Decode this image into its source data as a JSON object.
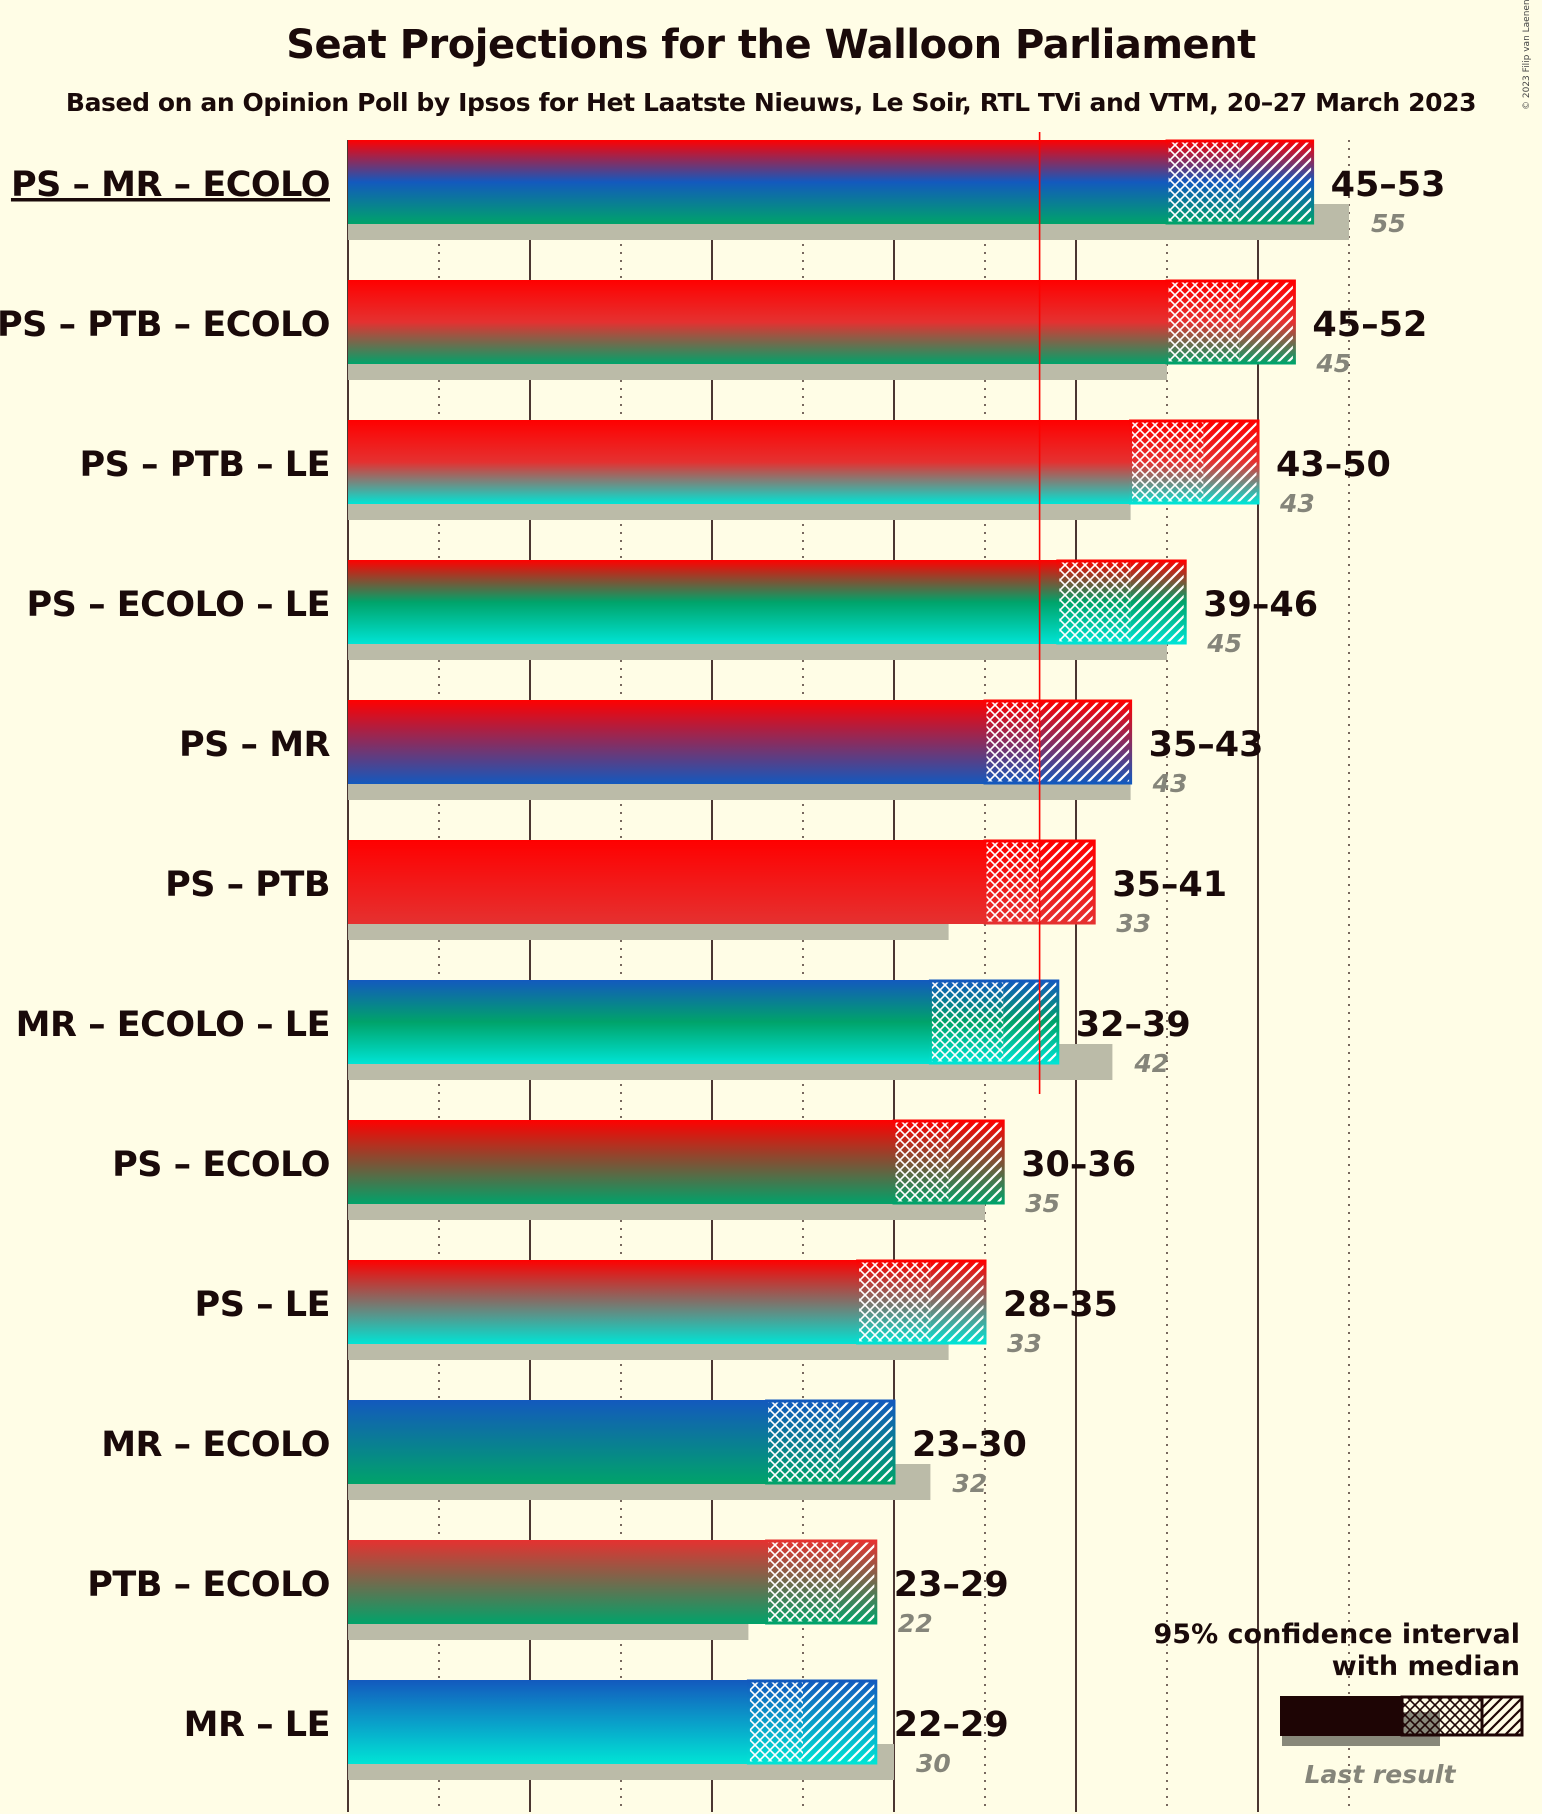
{
  "title": "Seat Projections for the Walloon Parliament",
  "subtitle": "Based on an Opinion Poll by Ipsos for Het Laatste Nieuws, Le Soir, RTL TVi and VTM, 20–27 March 2023",
  "copyright": "© 2023 Filip van Laenen",
  "colors": {
    "PS": "#FF0000",
    "PTB": "#E53130",
    "MR": "#1359BE",
    "ECOLO": "#00A36A",
    "LE": "#00E4D5",
    "last_result": "#BBBBA8",
    "majority_line": "#FF0000",
    "background": "#FFFDE6"
  },
  "legend": {
    "line1": "95% confidence interval",
    "line2": "with median",
    "last_result": "Last result"
  },
  "chart_data": {
    "type": "bar",
    "orientation": "horizontal",
    "x_unit": "seats",
    "majority": 38,
    "grid": "every 5 seats, solid every 10",
    "coalitions": [
      {
        "label": "PS – MR – ECOLO",
        "parties": [
          "PS",
          "MR",
          "ECOLO"
        ],
        "low": 45,
        "median": 49,
        "high": 53,
        "range_label": "45–53",
        "last": 55,
        "last_label": "55",
        "underlined": true
      },
      {
        "label": "PS – PTB – ECOLO",
        "parties": [
          "PS",
          "PTB",
          "ECOLO"
        ],
        "low": 45,
        "median": 49,
        "high": 52,
        "range_label": "45–52",
        "last": 45,
        "last_label": "45",
        "underlined": false
      },
      {
        "label": "PS – PTB – LE",
        "parties": [
          "PS",
          "PTB",
          "LE"
        ],
        "low": 43,
        "median": 47,
        "high": 50,
        "range_label": "43–50",
        "last": 43,
        "last_label": "43",
        "underlined": false
      },
      {
        "label": "PS – ECOLO – LE",
        "parties": [
          "PS",
          "ECOLO",
          "LE"
        ],
        "low": 39,
        "median": 43,
        "high": 46,
        "range_label": "39–46",
        "last": 45,
        "last_label": "45",
        "underlined": false
      },
      {
        "label": "PS – MR",
        "parties": [
          "PS",
          "MR"
        ],
        "low": 35,
        "median": 38,
        "high": 43,
        "range_label": "35–43",
        "last": 43,
        "last_label": "43",
        "underlined": false
      },
      {
        "label": "PS – PTB",
        "parties": [
          "PS",
          "PTB"
        ],
        "low": 35,
        "median": 38,
        "high": 41,
        "range_label": "35–41",
        "last": 33,
        "last_label": "33",
        "underlined": false
      },
      {
        "label": "MR – ECOLO – LE",
        "parties": [
          "MR",
          "ECOLO",
          "LE"
        ],
        "low": 32,
        "median": 36,
        "high": 39,
        "range_label": "32–39",
        "last": 42,
        "last_label": "42",
        "underlined": false
      },
      {
        "label": "PS – ECOLO",
        "parties": [
          "PS",
          "ECOLO"
        ],
        "low": 30,
        "median": 33,
        "high": 36,
        "range_label": "30–36",
        "last": 35,
        "last_label": "35",
        "underlined": false
      },
      {
        "label": "PS – LE",
        "parties": [
          "PS",
          "LE"
        ],
        "low": 28,
        "median": 32,
        "high": 35,
        "range_label": "28–35",
        "last": 33,
        "last_label": "33",
        "underlined": false
      },
      {
        "label": "MR – ECOLO",
        "parties": [
          "MR",
          "ECOLO"
        ],
        "low": 23,
        "median": 27,
        "high": 30,
        "range_label": "23–30",
        "last": 32,
        "last_label": "32",
        "underlined": false
      },
      {
        "label": "PTB – ECOLO",
        "parties": [
          "PTB",
          "ECOLO"
        ],
        "low": 23,
        "median": 27,
        "high": 29,
        "range_label": "23–29",
        "last": 22,
        "last_label": "22",
        "underlined": false
      },
      {
        "label": "MR – LE",
        "parties": [
          "MR",
          "LE"
        ],
        "low": 22,
        "median": 25,
        "high": 29,
        "range_label": "22–29",
        "last": 30,
        "last_label": "30",
        "underlined": false
      }
    ]
  }
}
